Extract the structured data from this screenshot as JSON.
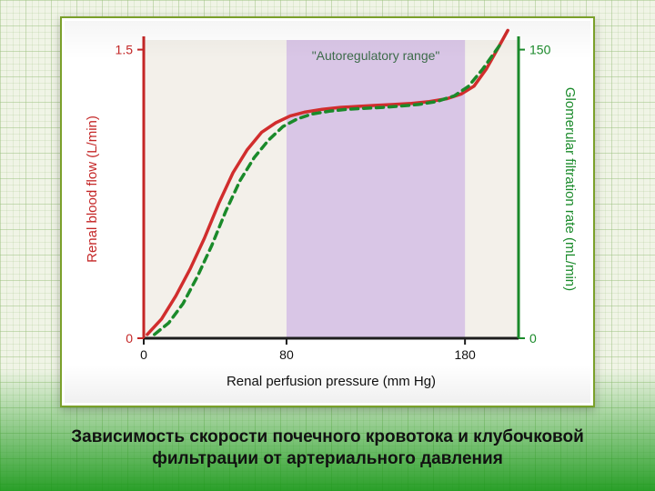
{
  "caption_line1": "Зависимость скорости почечного кровотока и клубочковой",
  "caption_line2": "фильтрации от артериального давления",
  "chart": {
    "type": "line",
    "background_color": "#ffffff",
    "border_color": "#7aa02a",
    "plot_bg": "#f3f0ea",
    "autoreg_band_color": "#d9c6e6",
    "autoreg_label": "\"Autoregulatory range\"",
    "autoreg_label_color": "#3d6b4a",
    "autoreg_label_fontsize": 14,
    "x_axis": {
      "label": "Renal perfusion pressure (mm Hg)",
      "label_color": "#111111",
      "label_fontsize": 15,
      "min": 0,
      "max": 210,
      "ticks": [
        0,
        80,
        180
      ],
      "tick_labels": [
        "0",
        "80",
        "180"
      ],
      "tick_color": "#111111"
    },
    "left_axis": {
      "label": "Renal blood flow (L/min)",
      "label_color": "#c42626",
      "label_fontsize": 15,
      "min": 0,
      "max": 1.55,
      "ticks": [
        0,
        1.5
      ],
      "tick_labels": [
        "0",
        "1.5"
      ],
      "number_color": "#c42626"
    },
    "right_axis": {
      "label": "Glomerular filtration rate (mL/min)",
      "label_color": "#1a8a2a",
      "label_fontsize": 15,
      "min": 0,
      "max": 155,
      "ticks": [
        0,
        150
      ],
      "tick_labels": [
        "0",
        "150"
      ],
      "number_color": "#1a8a2a"
    },
    "autoreg_band": {
      "x_start": 80,
      "x_end": 180
    },
    "series": [
      {
        "name": "RBF",
        "axis": "left",
        "color": "#d12d2d",
        "line_width": 3.5,
        "dash": "none",
        "points": [
          [
            2,
            0.02
          ],
          [
            10,
            0.1
          ],
          [
            18,
            0.22
          ],
          [
            26,
            0.36
          ],
          [
            34,
            0.52
          ],
          [
            42,
            0.7
          ],
          [
            50,
            0.86
          ],
          [
            58,
            0.98
          ],
          [
            66,
            1.07
          ],
          [
            74,
            1.12
          ],
          [
            82,
            1.155
          ],
          [
            90,
            1.175
          ],
          [
            100,
            1.19
          ],
          [
            110,
            1.2
          ],
          [
            120,
            1.205
          ],
          [
            130,
            1.21
          ],
          [
            140,
            1.215
          ],
          [
            150,
            1.22
          ],
          [
            160,
            1.23
          ],
          [
            170,
            1.245
          ],
          [
            178,
            1.27
          ],
          [
            185,
            1.31
          ],
          [
            192,
            1.4
          ],
          [
            198,
            1.5
          ],
          [
            204,
            1.6
          ]
        ]
      },
      {
        "name": "GFR",
        "axis": "right",
        "color": "#1a8a2a",
        "line_width": 3.5,
        "dash": "8 6",
        "points": [
          [
            6,
            2
          ],
          [
            14,
            8
          ],
          [
            22,
            18
          ],
          [
            30,
            32
          ],
          [
            38,
            48
          ],
          [
            46,
            66
          ],
          [
            54,
            82
          ],
          [
            62,
            94
          ],
          [
            70,
            103
          ],
          [
            78,
            110
          ],
          [
            86,
            114
          ],
          [
            94,
            116.5
          ],
          [
            104,
            118
          ],
          [
            114,
            119
          ],
          [
            124,
            119.5
          ],
          [
            134,
            120
          ],
          [
            144,
            120.7
          ],
          [
            154,
            121.5
          ],
          [
            164,
            123
          ],
          [
            174,
            126
          ],
          [
            182,
            131
          ],
          [
            190,
            140
          ],
          [
            200,
            153
          ]
        ]
      }
    ],
    "axis_line_color": "#1d1d1d",
    "axis_line_width": 3
  }
}
